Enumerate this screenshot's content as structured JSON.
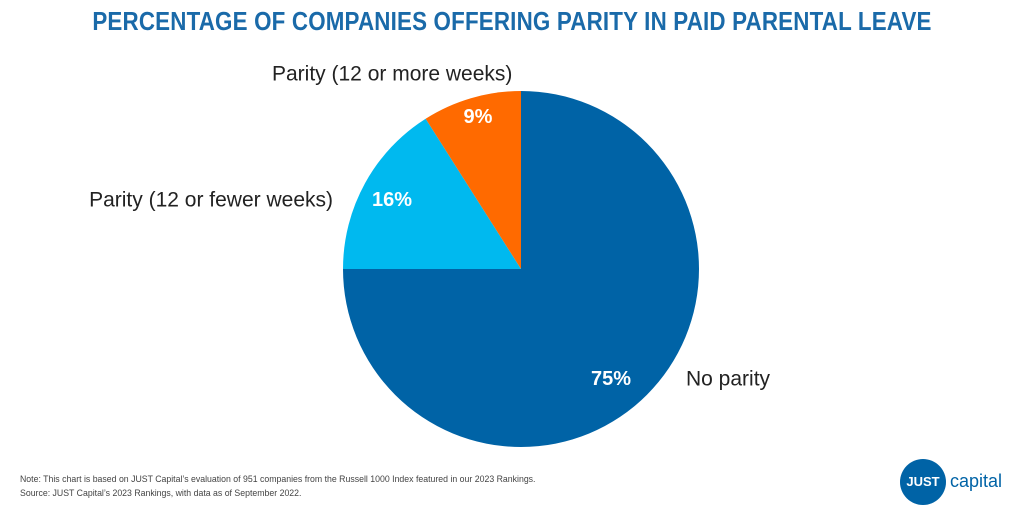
{
  "colors": {
    "title": "#1a6aa9",
    "no_parity": "#0063a6",
    "parity_12_or_fewer": "#00b9ef",
    "parity_12_or_more": "#ff6a00",
    "label_text": "#222222",
    "slice_label_text": "#ffffff"
  },
  "chart_data": {
    "type": "pie",
    "title": "PERCENTAGE OF COMPANIES OFFERING PARITY IN PAID PARENTAL LEAVE",
    "start_angle_deg": 0,
    "direction": "clockwise",
    "slices": [
      {
        "label": "No parity",
        "value": 75,
        "value_label": "75%",
        "color": "#0063a6"
      },
      {
        "label": "Parity (12 or fewer weeks)",
        "value": 16,
        "value_label": "16%",
        "color": "#00b9ef"
      },
      {
        "label": "Parity (12 or more weeks)",
        "value": 9,
        "value_label": "9%",
        "color": "#ff6a00"
      }
    ]
  },
  "notes": {
    "line1": "Note: This chart is based on JUST Capital’s evaluation of 951 companies from the Russell 1000 Index featured in our 2023 Rankings.",
    "line2": "Source: JUST Capital’s 2023 Rankings, with data as of September 2022."
  },
  "logo": {
    "circle_text": "JUST",
    "word": "capital"
  }
}
